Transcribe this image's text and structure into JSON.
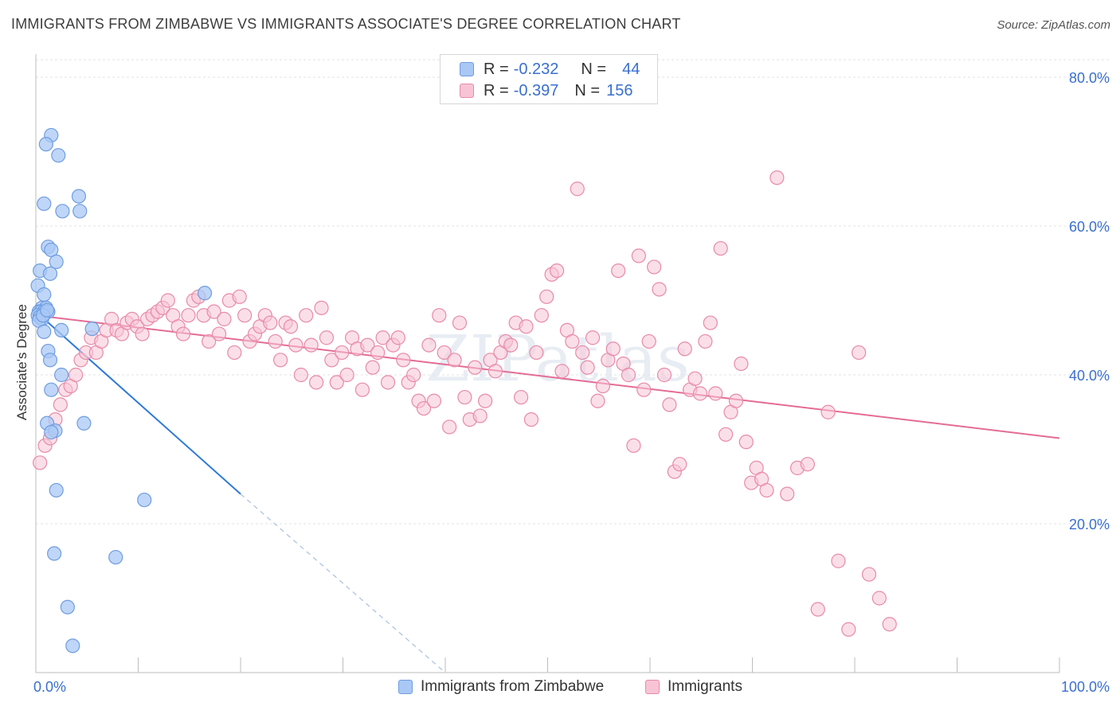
{
  "title": "IMMIGRANTS FROM ZIMBABWE VS IMMIGRANTS ASSOCIATE'S DEGREE CORRELATION CHART",
  "source": "Source: ZipAtlas.com",
  "watermark": "ZIPatlas",
  "legend_top": {
    "rows": [
      {
        "r_label": "R =",
        "r_value": "-0.232",
        "n_label": "N =",
        "n_value": "44",
        "color": "#a9c8f5",
        "border": "#6f9de0"
      },
      {
        "r_label": "R =",
        "r_value": "-0.397",
        "n_label": "N =",
        "n_value": "156",
        "color": "#f8c4d5",
        "border": "#e88aa8"
      }
    ]
  },
  "legend_bottom": [
    {
      "label": "Immigrants from Zimbabwe",
      "color": "#a9c8f5",
      "border": "#6f9de0"
    },
    {
      "label": "Immigrants",
      "color": "#f8c4d5",
      "border": "#e88aa8"
    }
  ],
  "chart_data": {
    "type": "scatter",
    "title": "IMMIGRANTS FROM ZIMBABWE VS IMMIGRANTS ASSOCIATE'S DEGREE CORRELATION CHART",
    "xlabel": "",
    "ylabel": "Associate's Degree",
    "xlim": [
      0,
      100
    ],
    "ylim": [
      0,
      82
    ],
    "x_tick_labels": [
      "0.0%",
      "100.0%"
    ],
    "y_tick_labels": [
      "20.0%",
      "40.0%",
      "60.0%",
      "80.0%"
    ],
    "y_ticks": [
      20,
      40,
      60,
      80
    ],
    "grid": true,
    "legend_position": "top-center",
    "colors": {
      "blue_point": "#a9c8f5",
      "blue_edge": "#6f9de0",
      "blue_line": "#2f7ad6",
      "pink_point": "#f8c4d5",
      "pink_edge": "#e88aa8",
      "pink_line": "#e46c96",
      "axis_label": "#3a6fd0"
    },
    "series": [
      {
        "name": "Immigrants from Zimbabwe",
        "points": [
          [
            1.5,
            72.2
          ],
          [
            1.0,
            71.0
          ],
          [
            2.2,
            69.5
          ],
          [
            0.8,
            63.0
          ],
          [
            4.2,
            64.0
          ],
          [
            2.6,
            62.0
          ],
          [
            4.3,
            62.0
          ],
          [
            1.2,
            57.2
          ],
          [
            1.5,
            56.8
          ],
          [
            2.0,
            55.2
          ],
          [
            0.4,
            54.0
          ],
          [
            1.4,
            53.6
          ],
          [
            0.2,
            52.0
          ],
          [
            0.8,
            50.8
          ],
          [
            16.5,
            51.0
          ],
          [
            0.6,
            49.0
          ],
          [
            1.0,
            49.0
          ],
          [
            0.3,
            48.5
          ],
          [
            0.5,
            48.5
          ],
          [
            0.8,
            48.5
          ],
          [
            1.2,
            48.5
          ],
          [
            0.2,
            48.0
          ],
          [
            0.4,
            47.8
          ],
          [
            0.6,
            47.5
          ],
          [
            0.3,
            47.3
          ],
          [
            2.5,
            46.0
          ],
          [
            5.5,
            46.2
          ],
          [
            0.8,
            45.8
          ],
          [
            1.2,
            43.2
          ],
          [
            1.4,
            42.0
          ],
          [
            2.5,
            40.0
          ],
          [
            1.5,
            38.0
          ],
          [
            4.7,
            33.5
          ],
          [
            1.1,
            33.5
          ],
          [
            1.9,
            32.5
          ],
          [
            1.5,
            32.3
          ],
          [
            2.0,
            24.5
          ],
          [
            10.6,
            23.2
          ],
          [
            1.8,
            16.0
          ],
          [
            7.8,
            15.5
          ],
          [
            3.1,
            8.8
          ],
          [
            3.6,
            3.6
          ],
          [
            0.7,
            48.0
          ],
          [
            1.1,
            48.7
          ]
        ]
      },
      {
        "name": "Immigrants",
        "points": [
          [
            0.4,
            28.2
          ],
          [
            0.9,
            30.5
          ],
          [
            1.4,
            31.5
          ],
          [
            1.9,
            34.0
          ],
          [
            2.4,
            36.0
          ],
          [
            2.9,
            38.0
          ],
          [
            3.4,
            38.5
          ],
          [
            3.9,
            40.0
          ],
          [
            4.4,
            42.0
          ],
          [
            4.9,
            43.0
          ],
          [
            5.4,
            45.0
          ],
          [
            5.9,
            43.0
          ],
          [
            6.4,
            44.5
          ],
          [
            6.9,
            46.0
          ],
          [
            7.4,
            47.5
          ],
          [
            7.9,
            46.0
          ],
          [
            8.4,
            45.5
          ],
          [
            8.9,
            47.0
          ],
          [
            9.4,
            47.5
          ],
          [
            9.9,
            46.5
          ],
          [
            10.4,
            45.5
          ],
          [
            10.9,
            47.5
          ],
          [
            11.4,
            48.0
          ],
          [
            11.9,
            48.5
          ],
          [
            12.4,
            49.0
          ],
          [
            12.9,
            50.0
          ],
          [
            13.4,
            48.0
          ],
          [
            13.9,
            46.5
          ],
          [
            14.4,
            45.5
          ],
          [
            14.9,
            48.0
          ],
          [
            15.4,
            50.0
          ],
          [
            15.9,
            50.5
          ],
          [
            16.4,
            48.0
          ],
          [
            16.9,
            44.5
          ],
          [
            17.4,
            48.5
          ],
          [
            17.9,
            45.5
          ],
          [
            18.4,
            47.5
          ],
          [
            18.9,
            50.0
          ],
          [
            19.4,
            43.0
          ],
          [
            19.9,
            50.5
          ],
          [
            20.4,
            48.0
          ],
          [
            20.9,
            44.5
          ],
          [
            21.4,
            45.5
          ],
          [
            21.9,
            46.5
          ],
          [
            22.4,
            48.0
          ],
          [
            22.9,
            47.0
          ],
          [
            23.4,
            44.5
          ],
          [
            23.9,
            42.0
          ],
          [
            24.4,
            47.0
          ],
          [
            24.9,
            46.5
          ],
          [
            25.4,
            44.0
          ],
          [
            25.9,
            40.0
          ],
          [
            26.4,
            48.0
          ],
          [
            26.9,
            44.0
          ],
          [
            27.4,
            39.0
          ],
          [
            27.9,
            49.0
          ],
          [
            28.4,
            45.0
          ],
          [
            28.9,
            42.0
          ],
          [
            29.4,
            39.0
          ],
          [
            29.9,
            43.0
          ],
          [
            30.4,
            40.0
          ],
          [
            30.9,
            45.0
          ],
          [
            31.4,
            43.5
          ],
          [
            31.9,
            38.0
          ],
          [
            32.4,
            44.0
          ],
          [
            32.9,
            41.0
          ],
          [
            33.4,
            43.0
          ],
          [
            33.9,
            45.0
          ],
          [
            34.4,
            39.0
          ],
          [
            34.9,
            44.0
          ],
          [
            35.4,
            45.0
          ],
          [
            35.9,
            42.0
          ],
          [
            36.4,
            39.0
          ],
          [
            36.9,
            40.0
          ],
          [
            37.4,
            36.5
          ],
          [
            37.9,
            35.5
          ],
          [
            38.4,
            44.0
          ],
          [
            38.9,
            36.5
          ],
          [
            39.4,
            48.0
          ],
          [
            39.9,
            43.0
          ],
          [
            40.4,
            33.0
          ],
          [
            40.9,
            42.0
          ],
          [
            41.4,
            47.0
          ],
          [
            41.9,
            37.0
          ],
          [
            42.4,
            34.0
          ],
          [
            42.9,
            41.0
          ],
          [
            43.4,
            34.5
          ],
          [
            43.9,
            36.5
          ],
          [
            44.4,
            42.0
          ],
          [
            44.9,
            40.5
          ],
          [
            45.4,
            43.0
          ],
          [
            45.9,
            44.5
          ],
          [
            46.4,
            44.0
          ],
          [
            46.9,
            47.0
          ],
          [
            47.4,
            37.0
          ],
          [
            47.9,
            46.5
          ],
          [
            48.4,
            34.0
          ],
          [
            48.9,
            43.0
          ],
          [
            49.4,
            48.0
          ],
          [
            49.9,
            50.5
          ],
          [
            50.4,
            53.5
          ],
          [
            50.9,
            54.0
          ],
          [
            51.4,
            40.5
          ],
          [
            51.9,
            46.0
          ],
          [
            52.4,
            44.5
          ],
          [
            52.9,
            65.0
          ],
          [
            53.4,
            43.0
          ],
          [
            53.9,
            41.0
          ],
          [
            54.4,
            45.0
          ],
          [
            54.9,
            36.5
          ],
          [
            55.4,
            38.5
          ],
          [
            55.9,
            42.0
          ],
          [
            56.4,
            43.5
          ],
          [
            56.9,
            54.0
          ],
          [
            57.4,
            41.5
          ],
          [
            57.9,
            40.0
          ],
          [
            58.4,
            30.5
          ],
          [
            58.9,
            56.0
          ],
          [
            59.4,
            38.0
          ],
          [
            59.9,
            44.5
          ],
          [
            60.4,
            54.5
          ],
          [
            60.9,
            51.5
          ],
          [
            61.4,
            40.0
          ],
          [
            61.9,
            36.0
          ],
          [
            62.4,
            27.0
          ],
          [
            62.9,
            28.0
          ],
          [
            63.4,
            43.5
          ],
          [
            63.9,
            38.0
          ],
          [
            64.4,
            39.5
          ],
          [
            64.9,
            37.5
          ],
          [
            65.4,
            44.5
          ],
          [
            65.9,
            47.0
          ],
          [
            66.4,
            37.5
          ],
          [
            66.9,
            57.0
          ],
          [
            67.4,
            32.0
          ],
          [
            67.9,
            35.0
          ],
          [
            68.4,
            36.5
          ],
          [
            68.9,
            41.5
          ],
          [
            69.4,
            31.0
          ],
          [
            69.9,
            25.5
          ],
          [
            70.4,
            27.5
          ],
          [
            70.9,
            26.0
          ],
          [
            71.4,
            24.5
          ],
          [
            72.4,
            66.5
          ],
          [
            73.4,
            24.0
          ],
          [
            74.4,
            27.5
          ],
          [
            75.4,
            28.0
          ],
          [
            76.4,
            8.5
          ],
          [
            77.4,
            35.0
          ],
          [
            78.4,
            15.0
          ],
          [
            79.4,
            5.8
          ],
          [
            80.4,
            43.0
          ],
          [
            81.4,
            13.2
          ],
          [
            82.4,
            10.0
          ],
          [
            83.4,
            6.5
          ]
        ]
      }
    ],
    "trend_lines": [
      {
        "series": "Immigrants from Zimbabwe",
        "x": [
          0,
          20
        ],
        "y": [
          48.5,
          24.0
        ],
        "dashed_extension_x": [
          20,
          40
        ],
        "dashed_extension_y": [
          24.0,
          0.0
        ]
      },
      {
        "series": "Immigrants",
        "x": [
          0,
          100
        ],
        "y": [
          48.0,
          31.5
        ]
      }
    ]
  }
}
